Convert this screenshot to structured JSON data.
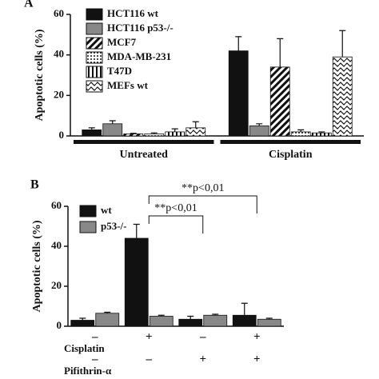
{
  "chart_data": [
    {
      "type": "bar",
      "panel": "A",
      "ylabel": "Apoptotic cells (%)",
      "categories": [
        "Untreated",
        "Cisplatin"
      ],
      "ylim": [
        0,
        60
      ],
      "yticks": [
        0,
        20,
        40,
        60
      ],
      "series": [
        {
          "name": "HCT116 wt",
          "color": "#111111",
          "pattern": "solid",
          "values": [
            3,
            42
          ],
          "errors": [
            1,
            7
          ]
        },
        {
          "name": "HCT116 p53-/-",
          "color": "#888888",
          "pattern": "solid",
          "values": [
            6,
            5
          ],
          "errors": [
            1.5,
            1
          ]
        },
        {
          "name": "MCF7",
          "color": "#111111",
          "pattern": "diagonal",
          "values": [
            1,
            34
          ],
          "errors": [
            0.3,
            14
          ]
        },
        {
          "name": "MDA-MB-231",
          "color": "#111111",
          "pattern": "dots",
          "values": [
            1,
            2
          ],
          "errors": [
            0.5,
            1
          ]
        },
        {
          "name": "T47D",
          "color": "#111111",
          "pattern": "vertical",
          "values": [
            2,
            1.5
          ],
          "errors": [
            1.5,
            0.5
          ]
        },
        {
          "name": "MEFs wt",
          "color": "#111111",
          "pattern": "wave",
          "values": [
            4,
            39
          ],
          "errors": [
            3,
            13
          ]
        }
      ]
    },
    {
      "type": "bar",
      "panel": "B",
      "ylabel": "Apoptotic cells (%)",
      "categories": [
        null,
        null,
        null,
        null
      ],
      "ylim": [
        0,
        60
      ],
      "yticks": [
        0,
        20,
        40,
        60
      ],
      "series": [
        {
          "name": "wt",
          "color": "#111111",
          "pattern": "solid",
          "values": [
            3,
            44,
            3.5,
            5.5
          ],
          "errors": [
            1,
            7,
            1.5,
            6
          ]
        },
        {
          "name": "p53-/-",
          "color": "#888888",
          "pattern": "solid",
          "values": [
            6.5,
            5,
            5.5,
            3.5
          ],
          "errors": [
            0.5,
            0.5,
            0.5,
            0.5
          ]
        }
      ],
      "conditions": [
        {
          "label": "Cisplatin",
          "marks": [
            "–",
            "+",
            "–",
            "+"
          ]
        },
        {
          "label": "Pifithrin-α",
          "marks": [
            "–",
            "–",
            "+",
            "+"
          ]
        }
      ],
      "comparisons": [
        {
          "label": "**p<0,01",
          "groups": [
            1,
            3
          ]
        },
        {
          "label": "**p<0,01",
          "groups": [
            1,
            2
          ]
        }
      ]
    }
  ]
}
